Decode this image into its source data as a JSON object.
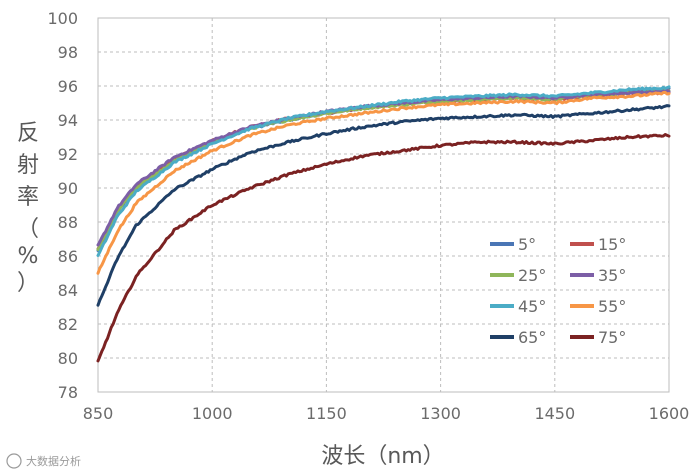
{
  "chart_data": {
    "type": "line",
    "xlabel": "波长（nm）",
    "ylabel_chars": [
      "反",
      "射",
      "率",
      "（",
      "%",
      "）"
    ],
    "xlim": [
      850,
      1600
    ],
    "ylim": [
      78,
      100
    ],
    "x_ticks": [
      "850",
      "1000",
      "1150",
      "1300",
      "1450",
      "1600"
    ],
    "y_ticks": [
      "78",
      "80",
      "82",
      "84",
      "86",
      "88",
      "90",
      "92",
      "94",
      "96",
      "98",
      "100"
    ],
    "x": [
      850,
      875,
      900,
      950,
      1000,
      1050,
      1100,
      1150,
      1200,
      1250,
      1300,
      1350,
      1400,
      1450,
      1500,
      1550,
      1600
    ],
    "series": [
      {
        "name": "5°",
        "color": "#4a76b5",
        "values": [
          86.3,
          88.6,
          90.0,
          91.6,
          92.7,
          93.5,
          94.0,
          94.4,
          94.7,
          95.0,
          95.2,
          95.3,
          95.4,
          95.3,
          95.5,
          95.7,
          95.8
        ]
      },
      {
        "name": "15°",
        "color": "#c0504d",
        "values": [
          86.4,
          88.7,
          90.1,
          91.7,
          92.8,
          93.6,
          94.1,
          94.4,
          94.7,
          95.0,
          95.1,
          95.2,
          95.3,
          95.2,
          95.4,
          95.6,
          95.6
        ]
      },
      {
        "name": "25°",
        "color": "#8fb65a",
        "values": [
          86.4,
          88.6,
          90.0,
          91.6,
          92.7,
          93.5,
          94.0,
          94.4,
          94.7,
          94.9,
          95.1,
          95.2,
          95.3,
          95.2,
          95.5,
          95.6,
          95.7
        ]
      },
      {
        "name": "35°",
        "color": "#7c5ea6",
        "values": [
          86.6,
          88.8,
          90.2,
          91.8,
          92.8,
          93.6,
          94.1,
          94.5,
          94.8,
          95.0,
          95.2,
          95.3,
          95.4,
          95.3,
          95.5,
          95.6,
          95.7
        ]
      },
      {
        "name": "45°",
        "color": "#4bacc6",
        "values": [
          86.0,
          88.3,
          89.8,
          91.5,
          92.6,
          93.5,
          94.1,
          94.5,
          94.8,
          95.1,
          95.3,
          95.4,
          95.5,
          95.4,
          95.6,
          95.8,
          95.9
        ]
      },
      {
        "name": "55°",
        "color": "#f79646",
        "values": [
          85.0,
          87.4,
          89.1,
          91.0,
          92.2,
          93.1,
          93.7,
          94.1,
          94.4,
          94.7,
          94.9,
          95.0,
          95.1,
          95.0,
          95.3,
          95.4,
          95.6
        ]
      },
      {
        "name": "65°",
        "color": "#1f3f66",
        "values": [
          83.1,
          85.8,
          87.8,
          89.9,
          91.1,
          92.1,
          92.7,
          93.2,
          93.6,
          93.9,
          94.1,
          94.2,
          94.3,
          94.2,
          94.4,
          94.6,
          94.8
        ]
      },
      {
        "name": "75°",
        "color": "#7b2222",
        "values": [
          79.8,
          82.6,
          84.8,
          87.5,
          89.0,
          90.0,
          90.8,
          91.4,
          91.9,
          92.2,
          92.5,
          92.7,
          92.7,
          92.6,
          92.8,
          93.0,
          93.1
        ]
      }
    ],
    "legend": {
      "placement": "lower-right",
      "columns": 2
    },
    "grid": true
  },
  "watermark": "大数据分析"
}
